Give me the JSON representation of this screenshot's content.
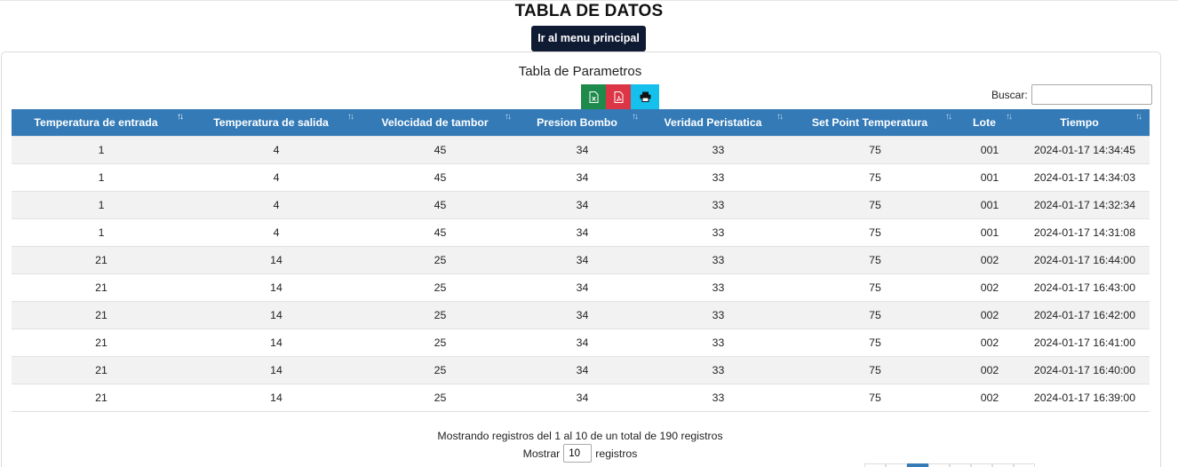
{
  "page": {
    "title": "TABLA DE DATOS",
    "menu_button": "Ir al menu principal"
  },
  "card": {
    "title": "Tabla de Parametros",
    "export_buttons": [
      {
        "name": "excel",
        "icon": "excel-icon",
        "color": "#1e8a4c"
      },
      {
        "name": "pdf",
        "icon": "pdf-icon",
        "color": "#dc3545"
      },
      {
        "name": "print",
        "icon": "print-icon",
        "color": "#15c1ec"
      }
    ],
    "search": {
      "label": "Buscar:",
      "value": ""
    }
  },
  "table": {
    "header_color": "#337ab7",
    "sorted_column": "Temperatura de entrada",
    "sort_direction": "asc",
    "columns": [
      "Temperatura de entrada",
      "Temperatura de salida",
      "Velocidad de tambor",
      "Presion Bombo",
      "Veridad Peristatica",
      "Set Point Temperatura",
      "Lote",
      "Tiempo"
    ],
    "rows": [
      [
        "1",
        "4",
        "45",
        "34",
        "33",
        "75",
        "001",
        "2024-01-17 14:34:45"
      ],
      [
        "1",
        "4",
        "45",
        "34",
        "33",
        "75",
        "001",
        "2024-01-17 14:34:03"
      ],
      [
        "1",
        "4",
        "45",
        "34",
        "33",
        "75",
        "001",
        "2024-01-17 14:32:34"
      ],
      [
        "1",
        "4",
        "45",
        "34",
        "33",
        "75",
        "001",
        "2024-01-17 14:31:08"
      ],
      [
        "21",
        "14",
        "25",
        "34",
        "33",
        "75",
        "002",
        "2024-01-17 16:44:00"
      ],
      [
        "21",
        "14",
        "25",
        "34",
        "33",
        "75",
        "002",
        "2024-01-17 16:43:00"
      ],
      [
        "21",
        "14",
        "25",
        "34",
        "33",
        "75",
        "002",
        "2024-01-17 16:42:00"
      ],
      [
        "21",
        "14",
        "25",
        "34",
        "33",
        "75",
        "002",
        "2024-01-17 16:41:00"
      ],
      [
        "21",
        "14",
        "25",
        "34",
        "33",
        "75",
        "002",
        "2024-01-17 16:40:00"
      ],
      [
        "21",
        "14",
        "25",
        "34",
        "33",
        "75",
        "002",
        "2024-01-17 16:39:00"
      ]
    ]
  },
  "footer": {
    "info": "Mostrando registros del 1 al 10 de un total de 190 registros",
    "length_prefix": "Mostrar",
    "length_value": "10",
    "length_suffix": "registros"
  }
}
